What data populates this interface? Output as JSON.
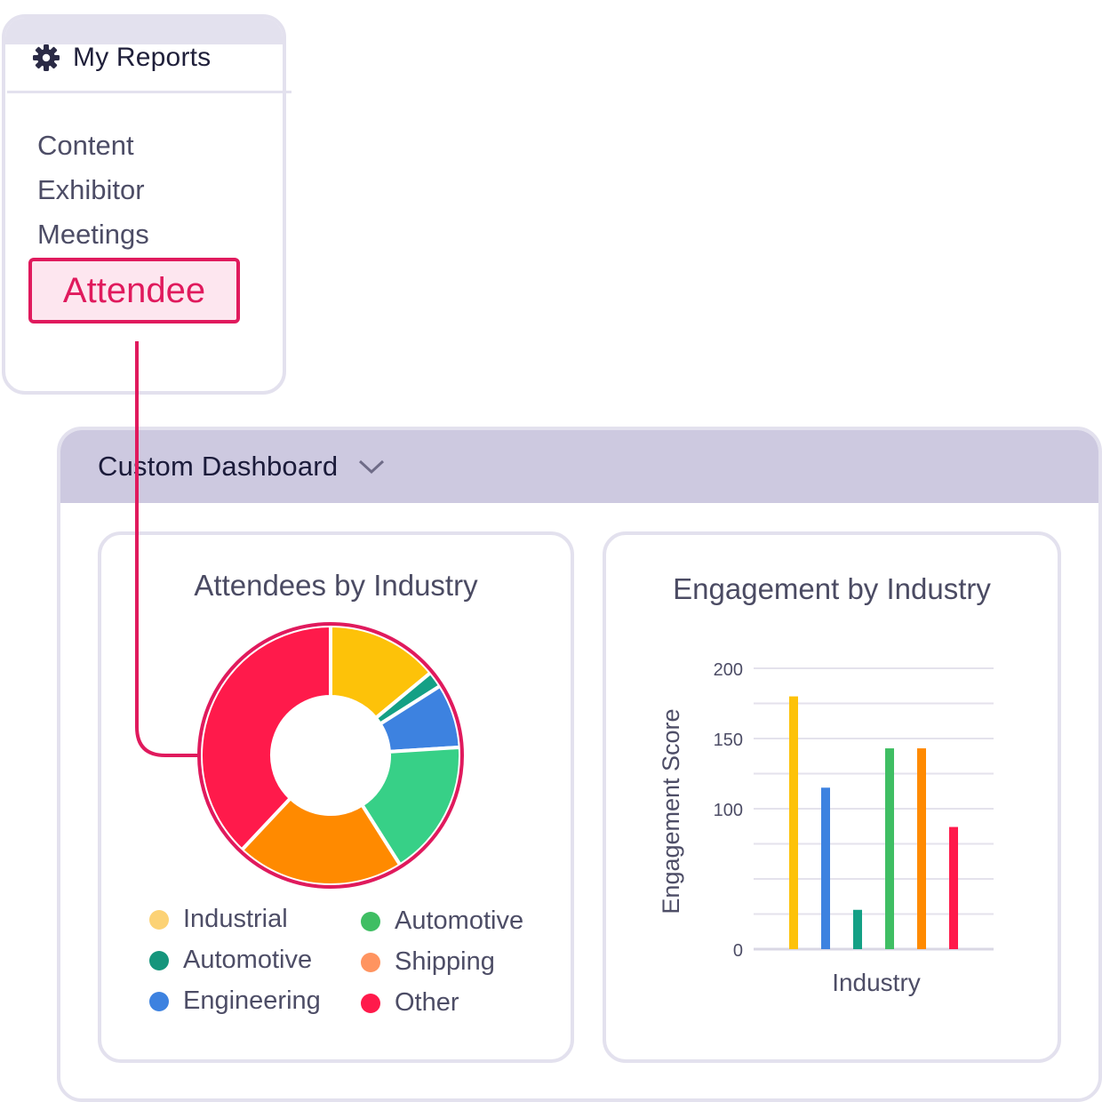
{
  "reports": {
    "title": "My Reports",
    "icon": "gear-icon",
    "items": [
      "Content",
      "Exhibitor",
      "Meetings"
    ],
    "selected": "Attendee"
  },
  "dashboard": {
    "title": "Custom Dashboard",
    "dropdown_icon": "chevron-down-icon"
  },
  "chart_data": [
    {
      "type": "pie",
      "title": "Attendees by Industry",
      "donut": true,
      "slices": [
        {
          "label": "Industrial",
          "value": 14,
          "color": "#fdc209"
        },
        {
          "label": "Automotive",
          "value": 2,
          "color": "#14a085"
        },
        {
          "label": "Engineering",
          "value": 8,
          "color": "#3d82e0"
        },
        {
          "label": "Automotive",
          "value": 17,
          "color": "#37d087"
        },
        {
          "label": "Shipping",
          "value": 21,
          "color": "#ff8a00"
        },
        {
          "label": "Other",
          "value": 38,
          "color": "#ff1a4b"
        }
      ],
      "legend": [
        {
          "label": "Industrial",
          "color": "#fcd275"
        },
        {
          "label": "Automotive",
          "color": "#15957c"
        },
        {
          "label": "Engineering",
          "color": "#3d82e0"
        },
        {
          "label": "Automotive",
          "color": "#3fbe63"
        },
        {
          "label": "Shipping",
          "color": "#ff9460"
        },
        {
          "label": "Other",
          "color": "#ff1a4b"
        }
      ]
    },
    {
      "type": "bar",
      "title": "Engagement by Industry",
      "xlabel": "Industry",
      "ylabel": "Engagement Score",
      "ylim": [
        0,
        200
      ],
      "yticks": [
        0,
        100,
        150,
        200
      ],
      "grid": true,
      "values": [
        180,
        115,
        28,
        143,
        143,
        87
      ],
      "colors": [
        "#fdc209",
        "#3d82e0",
        "#14a085",
        "#3fbe63",
        "#ff8a00",
        "#ff1a4b"
      ]
    }
  ]
}
